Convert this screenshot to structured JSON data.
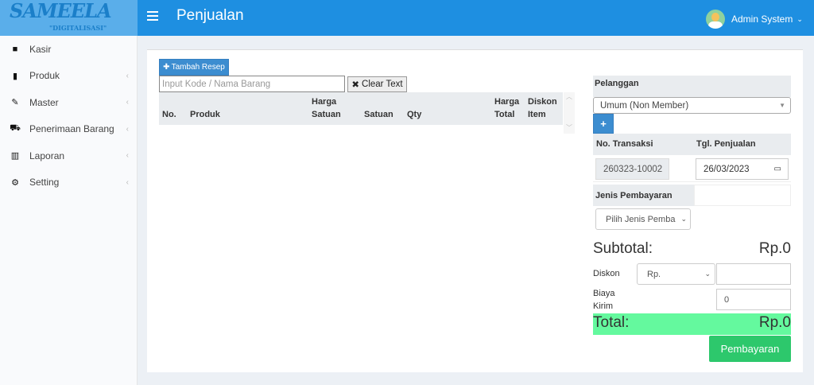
{
  "header": {
    "logo_main": "SAMEELA",
    "logo_sub": "\"DIGITALISASI\"",
    "title": "Penjualan",
    "user_name": "Admin System"
  },
  "sidebar": {
    "items": [
      {
        "label": "Kasir",
        "icon": "grid-icon",
        "glyph": "■",
        "chevron": false
      },
      {
        "label": "Produk",
        "icon": "bookmark-icon",
        "glyph": "▮",
        "chevron": true
      },
      {
        "label": "Master",
        "icon": "edit-icon",
        "glyph": "✎",
        "chevron": true
      },
      {
        "label": "Penerimaan Barang",
        "icon": "cart-icon",
        "glyph": "⛟",
        "chevron": true
      },
      {
        "label": "Laporan",
        "icon": "bar-chart-icon",
        "glyph": "▥",
        "chevron": true
      },
      {
        "label": "Setting",
        "icon": "gear-icon",
        "glyph": "⚙",
        "chevron": true
      }
    ]
  },
  "main": {
    "add_recipe_label": "Tambah Resep",
    "search_placeholder": "Input Kode / Nama Barang",
    "clear_label": "Clear Text",
    "columns": {
      "no": "No.",
      "produk": "Produk",
      "harga_satuan_1": "Harga",
      "harga_satuan_2": "Satuan",
      "satuan": "Satuan",
      "qty": "Qty",
      "harga_total_1": "Harga",
      "harga_total_2": "Total",
      "diskon_1": "Diskon",
      "diskon_2": "Item"
    }
  },
  "panel": {
    "pelanggan_label": "Pelanggan",
    "pelanggan_value": "Umum (Non Member)",
    "no_transaksi_label": "No. Transaksi",
    "tgl_label": "Tgl. Penjualan",
    "no_transaksi_value": "260323-10002",
    "tgl_value": "26/03/2023",
    "jenis_label": "Jenis Pembayaran",
    "jenis_value": "Pilih Jenis Pemba",
    "subtotal_label": "Subtotal:",
    "subtotal_value": "Rp.0",
    "diskon_label": "Diskon",
    "diskon_type": "Rp.",
    "diskon_value": "",
    "biaya_label_1": "Biaya",
    "biaya_label_2": "Kirim",
    "biaya_value": "0",
    "total_label": "Total:",
    "total_value": "Rp.0",
    "pay_label": "Pembayaran"
  },
  "colors": {
    "header": "#1e8fe1",
    "total_bg": "#64f99e",
    "pay_button": "#2dc86c"
  }
}
